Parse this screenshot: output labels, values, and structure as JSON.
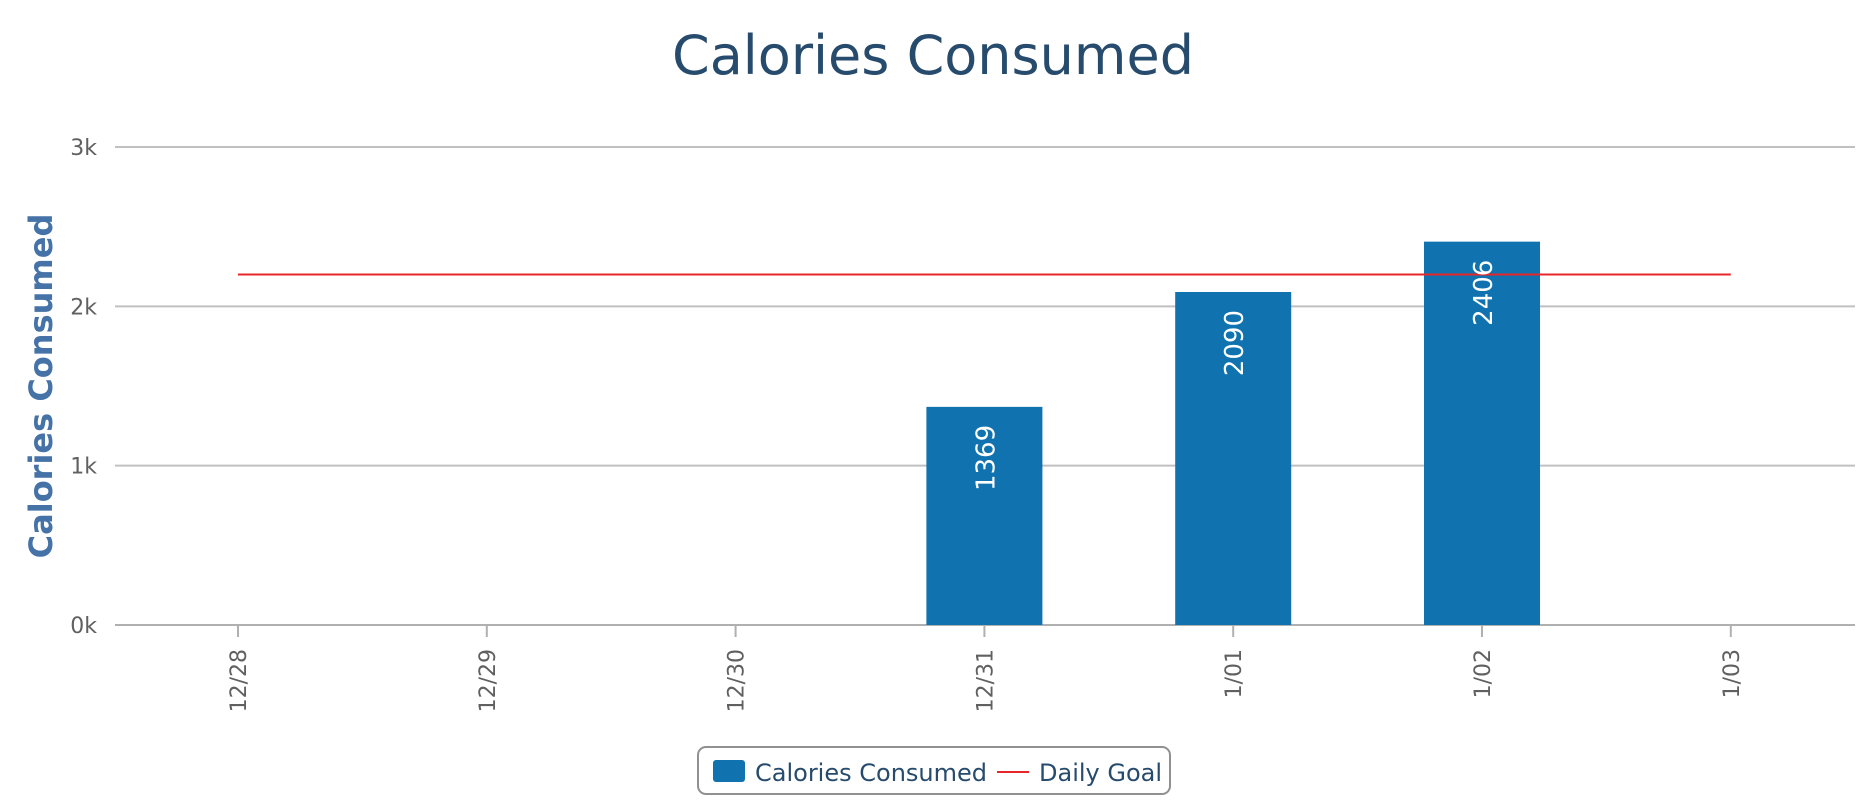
{
  "chart_data": {
    "type": "bar",
    "title": "Calories Consumed",
    "ylabel": "Calories Consumed",
    "xlabel": "",
    "categories": [
      "12/28",
      "12/29",
      "12/30",
      "12/31",
      "1/01",
      "1/02",
      "1/03"
    ],
    "ylim": [
      0,
      3000
    ],
    "yticks": [
      {
        "value": 0,
        "label": "0k"
      },
      {
        "value": 1000,
        "label": "1k"
      },
      {
        "value": 2000,
        "label": "2k"
      },
      {
        "value": 3000,
        "label": "3k"
      }
    ],
    "series": [
      {
        "name": "Calories Consumed",
        "type": "bar",
        "color": "#1073b0",
        "values": [
          null,
          null,
          null,
          1369,
          2090,
          2406,
          null
        ],
        "labels": [
          "",
          "",
          "",
          "1369",
          "2090",
          "2406",
          ""
        ]
      },
      {
        "name": "Daily Goal",
        "type": "line",
        "color": "#e8262a",
        "values": [
          2200,
          2200,
          2200,
          2200,
          2200,
          2200,
          2200
        ]
      }
    ],
    "grid": true,
    "legend_position": "bottom-center"
  }
}
